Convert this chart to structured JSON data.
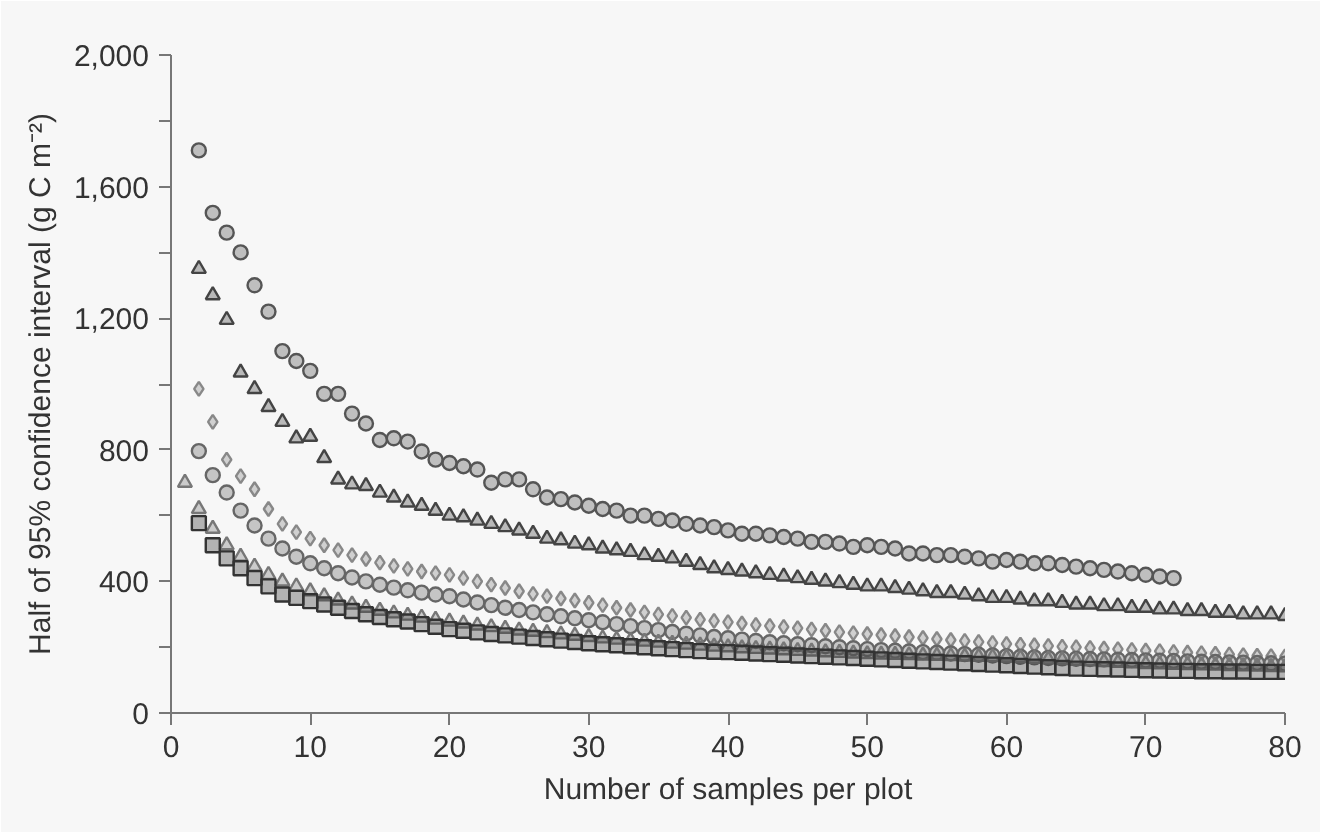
{
  "chart_data": {
    "type": "scatter",
    "xlabel": "Number of samples per plot",
    "ylabel": "Half of 95% confidence interval (g C m⁻²)",
    "xlim": [
      0,
      80
    ],
    "ylim": [
      0,
      2000
    ],
    "xticks": [
      0,
      10,
      20,
      30,
      40,
      50,
      60,
      70,
      80
    ],
    "yticks": [
      0,
      {
        "value": 200,
        "label": null
      },
      400,
      {
        "value": 600,
        "label": null
      },
      800,
      {
        "value": 1000,
        "label": null
      },
      {
        "value": 1200,
        "label": "1,200"
      },
      {
        "value": 1400,
        "label": null
      },
      {
        "value": 1600,
        "label": "1,600"
      },
      {
        "value": 1800,
        "label": null
      },
      {
        "value": 2000,
        "label": "2,000"
      }
    ],
    "grid": false,
    "series": [
      {
        "color": "#555555",
        "marker": "circle",
        "x": [
          2,
          3,
          4,
          5,
          6,
          7,
          8,
          9,
          10,
          11,
          12,
          13,
          14,
          15,
          16,
          17,
          18,
          19,
          20,
          21,
          22,
          23,
          24,
          25,
          26,
          27,
          28,
          29,
          30,
          31,
          32,
          33,
          34,
          35,
          36,
          37,
          38,
          39,
          40,
          41,
          42,
          43,
          44,
          45,
          46,
          47,
          48,
          49,
          50,
          51,
          52,
          53,
          54,
          55,
          56,
          57,
          58,
          59,
          60,
          61,
          62,
          63,
          64,
          65,
          66,
          67,
          68,
          69,
          70,
          71,
          72
        ],
        "values": [
          1710,
          1520,
          1460,
          1400,
          1300,
          1220,
          1100,
          1070,
          1040,
          970,
          970,
          910,
          880,
          830,
          835,
          825,
          795,
          770,
          760,
          750,
          740,
          700,
          710,
          710,
          680,
          655,
          650,
          640,
          630,
          620,
          615,
          600,
          600,
          590,
          585,
          575,
          570,
          565,
          555,
          545,
          545,
          540,
          535,
          530,
          520,
          520,
          515,
          505,
          510,
          505,
          500,
          485,
          485,
          480,
          480,
          475,
          470,
          460,
          465,
          460,
          455,
          455,
          450,
          445,
          440,
          435,
          430,
          425,
          420,
          415,
          410
        ]
      },
      {
        "color": "#444444",
        "marker": "triangle",
        "x": [
          2,
          3,
          4,
          5,
          6,
          7,
          8,
          9,
          10,
          11,
          12,
          13,
          14,
          15,
          16,
          17,
          18,
          19,
          20,
          21,
          22,
          23,
          24,
          25,
          26,
          27,
          28,
          29,
          30,
          31,
          32,
          33,
          34,
          35,
          36,
          37,
          38,
          39,
          40,
          41,
          42,
          43,
          44,
          45,
          46,
          47,
          48,
          49,
          50,
          51,
          52,
          53,
          54,
          55,
          56,
          57,
          58,
          59,
          60,
          61,
          62,
          63,
          64,
          65,
          66,
          67,
          68,
          69,
          70,
          71,
          72,
          73,
          74,
          75,
          76,
          77,
          78,
          79,
          80
        ],
        "values": [
          1350,
          1270,
          1195,
          1035,
          985,
          930,
          885,
          835,
          840,
          775,
          710,
          695,
          690,
          670,
          655,
          640,
          630,
          615,
          600,
          595,
          585,
          575,
          565,
          555,
          545,
          530,
          525,
          515,
          510,
          500,
          495,
          490,
          480,
          475,
          470,
          460,
          450,
          440,
          435,
          430,
          425,
          420,
          415,
          410,
          405,
          400,
          395,
          390,
          385,
          385,
          380,
          375,
          370,
          365,
          365,
          360,
          355,
          350,
          350,
          345,
          340,
          340,
          335,
          330,
          330,
          325,
          325,
          320,
          320,
          315,
          315,
          310,
          310,
          305,
          305,
          300,
          300,
          300,
          295
        ]
      },
      {
        "color": "#888888",
        "marker": "diamond",
        "x": [
          2,
          3,
          4,
          5,
          6,
          7,
          8,
          9,
          10,
          11,
          12,
          13,
          14,
          15,
          16,
          17,
          18,
          19,
          20,
          21,
          22,
          23,
          24,
          25,
          26,
          27,
          28,
          29,
          30,
          31,
          32,
          33,
          34,
          35,
          36,
          37,
          38,
          39,
          40,
          41,
          42,
          43,
          44,
          45,
          46,
          47,
          48,
          49,
          50,
          51,
          52,
          53,
          54,
          55,
          56,
          57,
          58,
          59,
          60,
          61,
          62,
          63,
          64,
          65,
          66,
          67,
          68,
          69,
          70,
          71,
          72,
          73,
          74,
          75,
          76,
          77,
          78,
          79,
          80
        ],
        "values": [
          985,
          885,
          770,
          720,
          680,
          620,
          575,
          550,
          530,
          510,
          495,
          480,
          468,
          457,
          447,
          438,
          430,
          425,
          420,
          410,
          400,
          390,
          380,
          370,
          362,
          355,
          348,
          342,
          335,
          328,
          320,
          313,
          306,
          300,
          295,
          290,
          284,
          280,
          276,
          272,
          268,
          265,
          262,
          258,
          254,
          250,
          246,
          243,
          240,
          237,
          234,
          231,
          228,
          225,
          222,
          219,
          216,
          213,
          210,
          208,
          206,
          204,
          202,
          200,
          198,
          196,
          194,
          192,
          190,
          188,
          186,
          184,
          182,
          180,
          178,
          176,
          174,
          173,
          172
        ]
      },
      {
        "color": "#666666",
        "marker": "circle",
        "x": [
          2,
          3,
          4,
          5,
          6,
          7,
          8,
          9,
          10,
          11,
          12,
          13,
          14,
          15,
          16,
          17,
          18,
          19,
          20,
          21,
          22,
          23,
          24,
          25,
          26,
          27,
          28,
          29,
          30,
          31,
          32,
          33,
          34,
          35,
          36,
          37,
          38,
          39,
          40,
          41,
          42,
          43,
          44,
          45,
          46,
          47,
          48,
          49,
          50,
          51,
          52,
          53,
          54,
          55,
          56,
          57,
          58,
          59,
          60,
          61,
          62,
          63,
          64,
          65,
          66,
          67,
          68,
          69,
          70,
          71,
          72,
          73,
          74,
          75,
          76,
          77,
          78,
          79,
          80
        ],
        "values": [
          796,
          723,
          670,
          615,
          570,
          530,
          500,
          475,
          455,
          440,
          425,
          412,
          400,
          390,
          381,
          373,
          366,
          360,
          355,
          345,
          336,
          328,
          320,
          313,
          306,
          300,
          294,
          288,
          282,
          276,
          270,
          264,
          258,
          252,
          246,
          241,
          236,
          231,
          227,
          223,
          219,
          215,
          212,
          209,
          206,
          203,
          200,
          197,
          194,
          191,
          189,
          187,
          185,
          183,
          181,
          179,
          177,
          175,
          173,
          171,
          169,
          167,
          166,
          165,
          164,
          163,
          162,
          161,
          160,
          159,
          158,
          157,
          156,
          155,
          154,
          153,
          152,
          151,
          150
        ]
      },
      {
        "color": "#777777",
        "marker": "triangle",
        "x": [
          1,
          2,
          3,
          4,
          5,
          6,
          7,
          8,
          9,
          10,
          11,
          12,
          13,
          14,
          15,
          16,
          17,
          18,
          19,
          20,
          21,
          22,
          23,
          24,
          25,
          26,
          27,
          28,
          29,
          30,
          31,
          32,
          33,
          34,
          35,
          36,
          37,
          38,
          39,
          40,
          41,
          42,
          43,
          44,
          45,
          46,
          47,
          48,
          49,
          50,
          51,
          52,
          53,
          54,
          55,
          56,
          57,
          58,
          59,
          60,
          61,
          62,
          63,
          64,
          65,
          66,
          67,
          68,
          69,
          70,
          71,
          72,
          73,
          74,
          75,
          76,
          77,
          78,
          79,
          80
        ],
        "values": [
          700,
          620,
          560,
          510,
          475,
          445,
          420,
          400,
          385,
          370,
          355,
          342,
          330,
          320,
          311,
          303,
          296,
          290,
          284,
          278,
          272,
          266,
          261,
          256,
          251,
          247,
          243,
          239,
          235,
          231,
          227,
          223,
          220,
          217,
          214,
          211,
          208,
          205,
          202,
          200,
          197,
          195,
          193,
          191,
          189,
          187,
          185,
          183,
          181,
          179,
          178,
          177,
          176,
          175,
          174,
          173,
          172,
          171,
          170,
          169,
          167,
          165,
          163,
          161,
          159,
          157,
          155,
          153,
          151,
          149,
          148,
          147,
          146,
          145,
          144,
          143,
          142,
          141,
          140,
          139
        ]
      },
      {
        "color": "#333333",
        "marker": "square",
        "x": [
          2,
          3,
          4,
          5,
          6,
          7,
          8,
          9,
          10,
          11,
          12,
          13,
          14,
          15,
          16,
          17,
          18,
          19,
          20,
          21,
          22,
          23,
          24,
          25,
          26,
          27,
          28,
          29,
          30,
          31,
          32,
          33,
          34,
          35,
          36,
          37,
          38,
          39,
          40,
          41,
          42,
          43,
          44,
          45,
          46,
          47,
          48,
          49,
          50,
          51,
          52,
          53,
          54,
          55,
          56,
          57,
          58,
          59,
          60,
          61,
          62,
          63,
          64,
          65,
          66,
          67,
          68,
          69,
          70,
          71,
          72,
          73,
          74,
          75,
          76,
          77,
          78,
          79,
          80
        ],
        "values": [
          577,
          510,
          470,
          440,
          410,
          385,
          360,
          350,
          340,
          330,
          320,
          310,
          300,
          292,
          285,
          278,
          270,
          262,
          255,
          250,
          245,
          240,
          236,
          232,
          228,
          224,
          220,
          216,
          212,
          209,
          206,
          203,
          200,
          197,
          194,
          191,
          188,
          186,
          185,
          183,
          181,
          179,
          177,
          175,
          173,
          171,
          169,
          167,
          165,
          163,
          161,
          159,
          157,
          155,
          153,
          151,
          149,
          147,
          145,
          143,
          141,
          139,
          137,
          135,
          134,
          133,
          132,
          131,
          130,
          129,
          128,
          128,
          127,
          127,
          126,
          126,
          125,
          125,
          125
        ]
      }
    ]
  }
}
